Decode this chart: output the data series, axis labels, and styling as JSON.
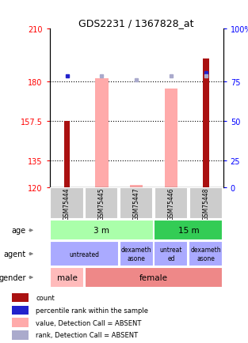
{
  "title": "GDS2231 / 1367828_at",
  "samples": [
    "GSM75444",
    "GSM75445",
    "GSM75447",
    "GSM75446",
    "GSM75448"
  ],
  "ylim": [
    120,
    210
  ],
  "yticks_left": [
    120,
    135,
    157.5,
    180,
    210
  ],
  "yticks_right": [
    0,
    25,
    50,
    75,
    100
  ],
  "right_y_vals": [
    120,
    135,
    157.5,
    180,
    210
  ],
  "bar_values_red": [
    157.5,
    0,
    0,
    0,
    193
  ],
  "bar_values_pink": [
    0,
    182,
    121,
    176,
    0
  ],
  "dot_blue_dark": [
    183,
    0,
    0,
    0,
    185
  ],
  "dot_blue_light": [
    0,
    183,
    181,
    183,
    183
  ],
  "color_red": "#aa1111",
  "color_pink": "#ffaaaa",
  "color_blue_dark": "#2222cc",
  "color_blue_light": "#aaaacc",
  "age_labels": [
    [
      "3 m",
      0,
      3
    ],
    [
      "15 m",
      3,
      5
    ]
  ],
  "age_colors": [
    "#aaffaa",
    "#33cc55"
  ],
  "agent_labels": [
    [
      "untreated",
      0,
      2
    ],
    [
      "dexameth\nasone",
      2,
      3
    ],
    [
      "untreat\ned",
      3,
      4
    ],
    [
      "dexameth\nasone",
      4,
      5
    ]
  ],
  "agent_color": "#aaaaff",
  "gender_labels": [
    [
      "male",
      0,
      1
    ],
    [
      "female",
      1,
      5
    ]
  ],
  "gender_male_color": "#ffbbbb",
  "gender_female_color": "#ee8888",
  "legend_items": [
    {
      "color": "#aa1111",
      "label": "count"
    },
    {
      "color": "#2222cc",
      "label": "percentile rank within the sample"
    },
    {
      "color": "#ffaaaa",
      "label": "value, Detection Call = ABSENT"
    },
    {
      "color": "#aaaacc",
      "label": "rank, Detection Call = ABSENT"
    }
  ]
}
